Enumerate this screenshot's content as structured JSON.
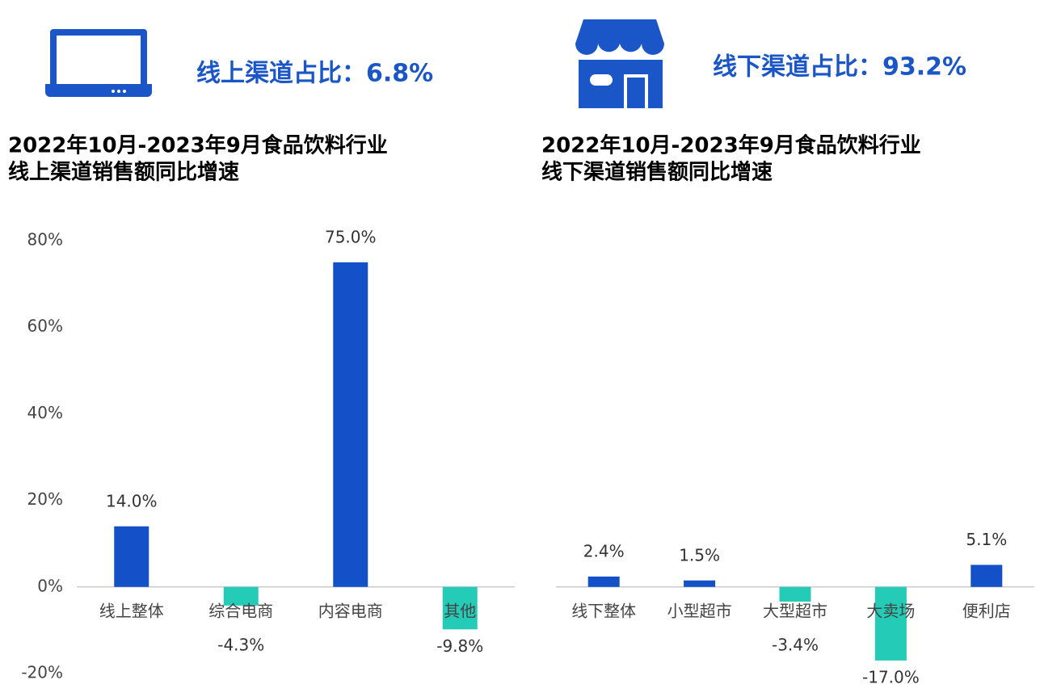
{
  "headers": [
    "线上渠道占比：6.8%",
    "线下渠道占比：93.2%"
  ],
  "chart_data": [
    {
      "type": "bar",
      "title": [
        "2022年10月-2023年9月食品饮料行业",
        "线上渠道销售额同比增速"
      ],
      "categories": [
        "线上整体",
        "综合电商",
        "内容电商",
        "其他"
      ],
      "values": [
        14.0,
        -4.3,
        75.0,
        -9.8
      ],
      "value_labels": [
        "14.0%",
        "-4.3%",
        "75.0%",
        "-9.8%"
      ],
      "colors": {
        "positive": "#1450c8",
        "negative": "#24cbb6"
      },
      "ylim": [
        -20,
        80
      ],
      "yticks": [
        {
          "value": -20,
          "label": "-20%"
        },
        {
          "value": 0,
          "label": "0%"
        },
        {
          "value": 20,
          "label": "20%"
        },
        {
          "value": 40,
          "label": "40%"
        },
        {
          "value": 60,
          "label": "60%"
        },
        {
          "value": 80,
          "label": "80%"
        }
      ]
    },
    {
      "type": "bar",
      "title": [
        "2022年10月-2023年9月食品饮料行业",
        "线下渠道销售额同比增速"
      ],
      "categories": [
        "线下整体",
        "小型超市",
        "大型超市",
        "大卖场",
        "便利店"
      ],
      "values": [
        2.4,
        1.5,
        -3.4,
        -17.0,
        5.1
      ],
      "value_labels": [
        "2.4%",
        "1.5%",
        "-3.4%",
        "-17.0%",
        "5.1%"
      ],
      "colors": {
        "positive": "#1450c8",
        "negative": "#24cbb6"
      },
      "ylim": [
        -20,
        80
      ]
    }
  ]
}
